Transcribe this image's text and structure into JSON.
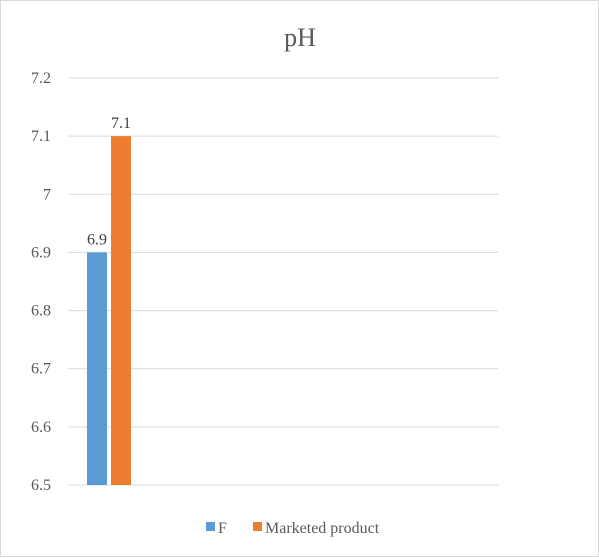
{
  "chart_data": {
    "type": "bar",
    "title": "pH",
    "categories": [
      ""
    ],
    "series": [
      {
        "name": "F",
        "values": [
          6.9
        ],
        "color": "#5b9bd5"
      },
      {
        "name": "Marketed product",
        "values": [
          7.1
        ],
        "color": "#ed7d31"
      }
    ],
    "ylim": [
      6.5,
      7.2
    ],
    "yticks": [
      "6.5",
      "6.6",
      "6.7",
      "6.8",
      "6.9",
      "7",
      "7.1",
      "7.2"
    ],
    "data_labels": [
      "6.9",
      "7.1"
    ],
    "grid": true,
    "legend": "bottom"
  }
}
